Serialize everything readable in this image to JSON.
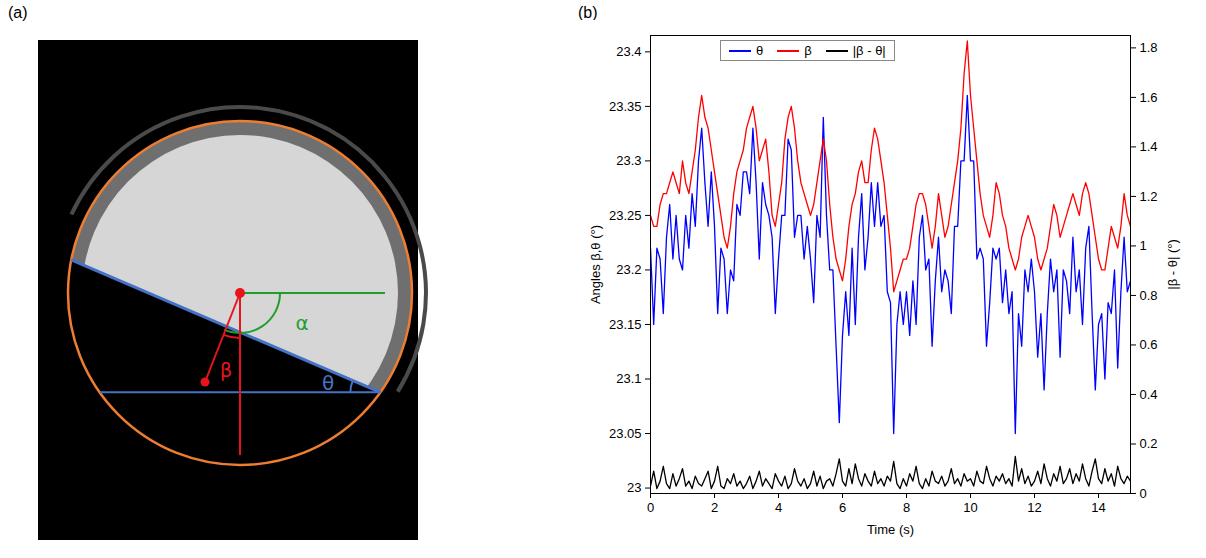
{
  "diagram": {
    "panel": "(a)",
    "angle_labels": {
      "alpha": "α",
      "beta": "β",
      "theta": "θ"
    }
  },
  "chart_data": {
    "panel": "(b)",
    "type": "line",
    "xlabel": "Time (s)",
    "ylabel": "Angles β,θ (°)",
    "y2label": "|β - θ| (°)",
    "legend": "top",
    "xlim": [
      0,
      15
    ],
    "xticks": [
      0,
      2,
      4,
      6,
      8,
      10,
      12,
      14
    ],
    "ylim": [
      22.995,
      23.415
    ],
    "yticks": [
      23,
      23.05,
      23.1,
      23.15,
      23.2,
      23.25,
      23.3,
      23.35,
      23.4
    ],
    "y2lim": [
      0,
      1.85
    ],
    "y2ticks": [
      0,
      0.2,
      0.4,
      0.6,
      0.8,
      1,
      1.2,
      1.4,
      1.6,
      1.8
    ],
    "x": [
      0,
      0.1,
      0.2,
      0.3,
      0.4,
      0.5,
      0.6,
      0.7,
      0.8,
      0.9,
      1,
      1.1,
      1.2,
      1.3,
      1.4,
      1.5,
      1.6,
      1.7,
      1.8,
      1.9,
      2,
      2.1,
      2.2,
      2.3,
      2.4,
      2.5,
      2.6,
      2.7,
      2.8,
      2.9,
      3,
      3.1,
      3.2,
      3.3,
      3.4,
      3.5,
      3.6,
      3.7,
      3.8,
      3.9,
      4,
      4.1,
      4.2,
      4.3,
      4.4,
      4.5,
      4.6,
      4.7,
      4.8,
      4.9,
      5,
      5.1,
      5.2,
      5.3,
      5.4,
      5.5,
      5.6,
      5.7,
      5.8,
      5.9,
      6,
      6.1,
      6.2,
      6.3,
      6.4,
      6.5,
      6.6,
      6.7,
      6.8,
      6.9,
      7,
      7.1,
      7.2,
      7.3,
      7.4,
      7.5,
      7.6,
      7.7,
      7.8,
      7.9,
      8,
      8.1,
      8.2,
      8.3,
      8.4,
      8.5,
      8.6,
      8.7,
      8.8,
      8.9,
      9,
      9.1,
      9.2,
      9.3,
      9.4,
      9.5,
      9.6,
      9.7,
      9.8,
      9.9,
      10,
      10.1,
      10.2,
      10.3,
      10.4,
      10.5,
      10.6,
      10.7,
      10.8,
      10.9,
      11,
      11.1,
      11.2,
      11.3,
      11.4,
      11.5,
      11.6,
      11.7,
      11.8,
      11.9,
      12,
      12.1,
      12.2,
      12.3,
      12.4,
      12.5,
      12.6,
      12.7,
      12.8,
      12.9,
      13,
      13.1,
      13.2,
      13.3,
      13.4,
      13.5,
      13.6,
      13.7,
      13.8,
      13.9,
      14,
      14.1,
      14.2,
      14.3,
      14.4,
      14.5,
      14.6,
      14.7,
      14.8,
      14.9,
      15
    ],
    "series": [
      {
        "name": "θ",
        "color": "#0000ff",
        "values": [
          23.22,
          23.15,
          23.22,
          23.21,
          23.16,
          23.23,
          23.26,
          23.21,
          23.25,
          23.21,
          23.2,
          23.25,
          23.22,
          23.27,
          23.24,
          23.3,
          23.33,
          23.28,
          23.24,
          23.29,
          23.24,
          23.16,
          23.22,
          23.21,
          23.16,
          23.2,
          23.19,
          23.26,
          23.25,
          23.29,
          23.29,
          23.27,
          23.33,
          23.28,
          23.21,
          23.28,
          23.26,
          23.25,
          23.23,
          23.16,
          23.21,
          23.25,
          23.25,
          23.32,
          23.31,
          23.23,
          23.25,
          23.25,
          23.21,
          23.24,
          23.21,
          23.17,
          23.25,
          23.23,
          23.34,
          23.25,
          23.2,
          23.2,
          23.13,
          23.06,
          23.14,
          23.18,
          23.14,
          23.22,
          23.15,
          23.23,
          23.27,
          23.2,
          23.23,
          23.28,
          23.24,
          23.28,
          23.24,
          23.25,
          23.18,
          23.17,
          23.05,
          23.15,
          23.18,
          23.15,
          23.18,
          23.14,
          23.19,
          23.15,
          23.23,
          23.25,
          23.2,
          23.21,
          23.13,
          23.19,
          23.23,
          23.18,
          23.2,
          23.19,
          23.16,
          23.24,
          23.24,
          23.3,
          23.3,
          23.36,
          23.3,
          23.3,
          23.21,
          23.22,
          23.21,
          23.13,
          23.17,
          23.22,
          23.21,
          23.22,
          23.17,
          23.2,
          23.16,
          23.18,
          23.05,
          23.16,
          23.13,
          23.2,
          23.18,
          23.21,
          23.18,
          23.12,
          23.16,
          23.09,
          23.16,
          23.21,
          23.18,
          23.2,
          23.12,
          23.2,
          23.19,
          23.16,
          23.23,
          23.18,
          23.2,
          23.15,
          23.22,
          23.24,
          23.16,
          23.09,
          23.15,
          23.16,
          23.1,
          23.17,
          23.16,
          23.2,
          23.11,
          23.18,
          23.23,
          23.18,
          23.19
        ]
      },
      {
        "name": "β",
        "color": "#ff0000",
        "values": [
          23.25,
          23.24,
          23.24,
          23.26,
          23.27,
          23.27,
          23.28,
          23.29,
          23.28,
          23.27,
          23.3,
          23.28,
          23.27,
          23.29,
          23.31,
          23.34,
          23.36,
          23.34,
          23.33,
          23.31,
          23.29,
          23.27,
          23.25,
          23.23,
          23.22,
          23.24,
          23.27,
          23.29,
          23.3,
          23.31,
          23.33,
          23.34,
          23.35,
          23.33,
          23.3,
          23.31,
          23.32,
          23.29,
          23.25,
          23.24,
          23.26,
          23.28,
          23.32,
          23.34,
          23.35,
          23.33,
          23.3,
          23.28,
          23.27,
          23.26,
          23.25,
          23.26,
          23.28,
          23.3,
          23.32,
          23.3,
          23.26,
          23.23,
          23.21,
          23.2,
          23.19,
          23.21,
          23.24,
          23.26,
          23.27,
          23.29,
          23.3,
          23.28,
          23.28,
          23.31,
          23.33,
          23.32,
          23.3,
          23.28,
          23.25,
          23.22,
          23.18,
          23.19,
          23.2,
          23.21,
          23.21,
          23.22,
          23.24,
          23.26,
          23.27,
          23.27,
          23.26,
          23.24,
          23.22,
          23.24,
          23.27,
          23.25,
          23.23,
          23.24,
          23.26,
          23.28,
          23.3,
          23.33,
          23.38,
          23.41,
          23.36,
          23.33,
          23.3,
          23.27,
          23.25,
          23.24,
          23.23,
          23.25,
          23.28,
          23.27,
          23.25,
          23.24,
          23.22,
          23.21,
          23.2,
          23.21,
          23.23,
          23.24,
          23.25,
          23.24,
          23.23,
          23.21,
          23.2,
          23.21,
          23.22,
          23.24,
          23.26,
          23.25,
          23.23,
          23.24,
          23.25,
          23.26,
          23.27,
          23.26,
          23.25,
          23.27,
          23.28,
          23.27,
          23.25,
          23.23,
          23.21,
          23.2,
          23.2,
          23.22,
          23.24,
          23.23,
          23.22,
          23.24,
          23.27,
          23.25,
          23.24
        ]
      },
      {
        "name": "|β - θ|",
        "color": "#000000",
        "axis": "y2",
        "values": [
          0.03,
          0.09,
          0.02,
          0.05,
          0.11,
          0.04,
          0.02,
          0.08,
          0.03,
          0.06,
          0.1,
          0.03,
          0.05,
          0.02,
          0.07,
          0.04,
          0.03,
          0.06,
          0.09,
          0.02,
          0.05,
          0.11,
          0.03,
          0.02,
          0.06,
          0.04,
          0.08,
          0.03,
          0.05,
          0.02,
          0.04,
          0.07,
          0.02,
          0.05,
          0.09,
          0.03,
          0.06,
          0.04,
          0.02,
          0.08,
          0.05,
          0.03,
          0.07,
          0.02,
          0.04,
          0.1,
          0.05,
          0.03,
          0.06,
          0.02,
          0.04,
          0.09,
          0.03,
          0.07,
          0.02,
          0.05,
          0.06,
          0.03,
          0.08,
          0.14,
          0.05,
          0.03,
          0.1,
          0.04,
          0.12,
          0.06,
          0.03,
          0.08,
          0.05,
          0.03,
          0.09,
          0.04,
          0.06,
          0.03,
          0.07,
          0.05,
          0.13,
          0.04,
          0.02,
          0.06,
          0.03,
          0.08,
          0.05,
          0.11,
          0.04,
          0.02,
          0.06,
          0.03,
          0.09,
          0.05,
          0.04,
          0.07,
          0.03,
          0.05,
          0.1,
          0.04,
          0.06,
          0.03,
          0.08,
          0.05,
          0.06,
          0.03,
          0.09,
          0.05,
          0.04,
          0.11,
          0.06,
          0.03,
          0.07,
          0.05,
          0.08,
          0.04,
          0.06,
          0.03,
          0.15,
          0.05,
          0.1,
          0.04,
          0.07,
          0.03,
          0.05,
          0.09,
          0.04,
          0.12,
          0.06,
          0.03,
          0.08,
          0.05,
          0.11,
          0.04,
          0.06,
          0.1,
          0.04,
          0.08,
          0.05,
          0.12,
          0.06,
          0.03,
          0.09,
          0.14,
          0.06,
          0.04,
          0.1,
          0.05,
          0.08,
          0.03,
          0.11,
          0.06,
          0.04,
          0.07,
          0.05
        ]
      }
    ]
  }
}
